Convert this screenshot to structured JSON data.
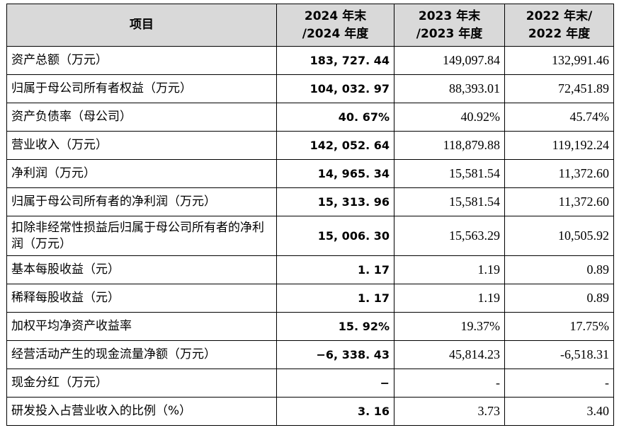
{
  "table": {
    "headers": [
      {
        "line1": "项目",
        "line2": ""
      },
      {
        "line1": "2024 年末",
        "line2": "/2024 年度"
      },
      {
        "line1": "2023 年末",
        "line2": "/2023 年度"
      },
      {
        "line1": "2022 年末/",
        "line2": "2022 年度"
      }
    ],
    "rows": [
      {
        "label": "资产总额（万元）",
        "v2024": "183, 727. 44",
        "v2023": "149,097.84",
        "v2022": "132,991.46"
      },
      {
        "label": "归属于母公司所有者权益（万元）",
        "v2024": "104, 032. 97",
        "v2023": "88,393.01",
        "v2022": "72,451.89"
      },
      {
        "label": "资产负债率（母公司）",
        "v2024": "40. 67%",
        "v2023": "40.92%",
        "v2022": "45.74%"
      },
      {
        "label": "营业收入（万元）",
        "v2024": "142, 052. 64",
        "v2023": "118,879.88",
        "v2022": "119,192.24"
      },
      {
        "label": "净利润（万元）",
        "v2024": "14, 965. 34",
        "v2023": "15,581.54",
        "v2022": "11,372.60"
      },
      {
        "label": "归属于母公司所有者的净利润（万元）",
        "v2024": "15, 313. 96",
        "v2023": "15,581.54",
        "v2022": "11,372.60"
      },
      {
        "label": "扣除非经常性损益后归属于母公司所有者的净利润（万元）",
        "v2024": "15, 006. 30",
        "v2023": "15,563.29",
        "v2022": "10,505.92"
      },
      {
        "label": "基本每股收益（元）",
        "v2024": "1. 17",
        "v2023": "1.19",
        "v2022": "0.89"
      },
      {
        "label": "稀释每股收益（元）",
        "v2024": "1. 17",
        "v2023": "1.19",
        "v2022": "0.89"
      },
      {
        "label": "加权平均净资产收益率",
        "v2024": "15. 92%",
        "v2023": "19.37%",
        "v2022": "17.75%"
      },
      {
        "label": "经营活动产生的现金流量净额（万元）",
        "v2024": "−6, 338. 43",
        "v2023": "45,814.23",
        "v2022": "-6,518.31"
      },
      {
        "label": "现金分红（万元）",
        "v2024": "−",
        "v2023": "-",
        "v2022": "-"
      },
      {
        "label": "研发投入占营业收入的比例（%）",
        "v2024": "3. 16",
        "v2023": "3.73",
        "v2022": "3.40"
      }
    ]
  }
}
